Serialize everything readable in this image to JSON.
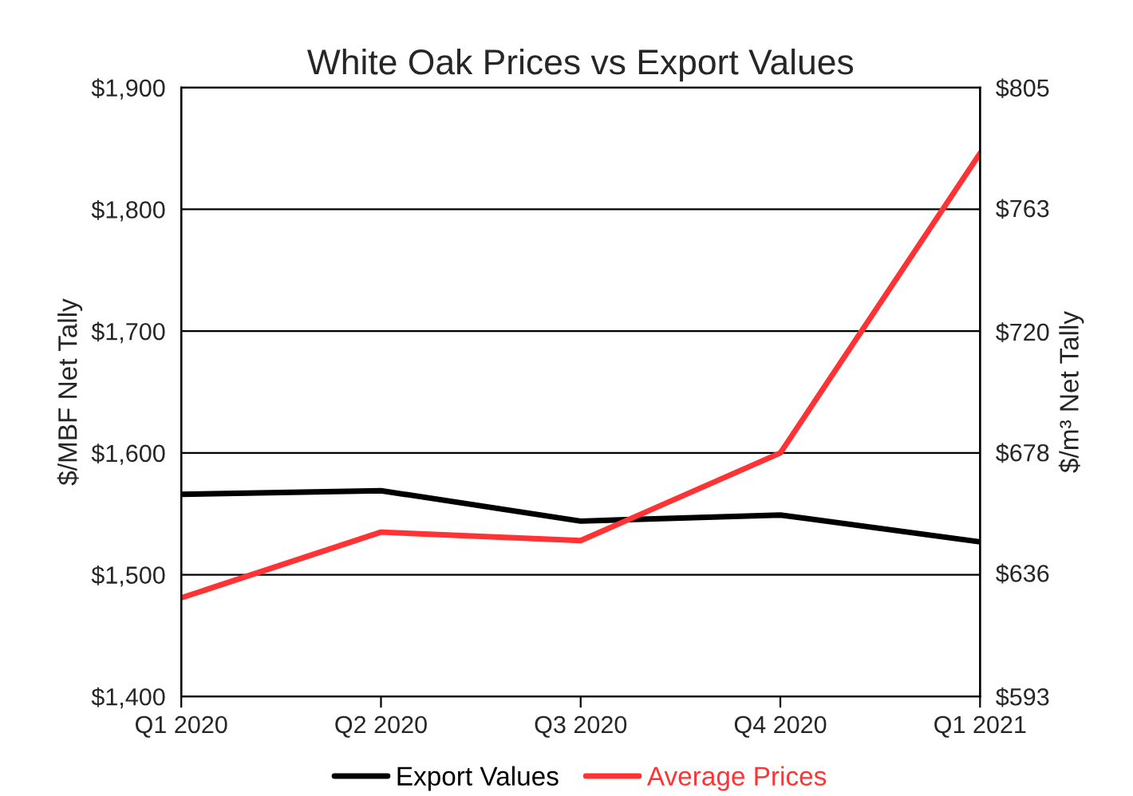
{
  "chart_data": {
    "type": "line",
    "title": "White Oak Prices vs Export Values",
    "categories": [
      "Q1 2020",
      "Q2 2020",
      "Q3 2020",
      "Q4 2020",
      "Q1 2021"
    ],
    "series": [
      {
        "name": "Export Values",
        "color": "#000000",
        "values": [
          1566,
          1569,
          1544,
          1549,
          1527
        ]
      },
      {
        "name": "Average Prices",
        "color": "#ff3333",
        "values": [
          1481,
          1535,
          1528,
          1600,
          1846
        ]
      }
    ],
    "ylabel": "$/MBF Net Tally",
    "y2label": "$/m³ Net Tally",
    "ylim": [
      1400,
      1900
    ],
    "yticks": [
      {
        "value": 1400,
        "label": "$1,400"
      },
      {
        "value": 1500,
        "label": "$1,500"
      },
      {
        "value": 1600,
        "label": "$1,600"
      },
      {
        "value": 1700,
        "label": "$1,700"
      },
      {
        "value": 1800,
        "label": "$1,800"
      },
      {
        "value": 1900,
        "label": "$1,900"
      }
    ],
    "y2lim": [
      593,
      805
    ],
    "y2ticks": [
      {
        "value": 593,
        "label": "$593"
      },
      {
        "value": 636,
        "label": "$636"
      },
      {
        "value": 678,
        "label": "$678"
      },
      {
        "value": 720,
        "label": "$720"
      },
      {
        "value": 763,
        "label": "$763"
      },
      {
        "value": 805,
        "label": "$805"
      }
    ],
    "grid": "y",
    "legend": "bottom",
    "marker": "none",
    "line_style": "solid"
  }
}
